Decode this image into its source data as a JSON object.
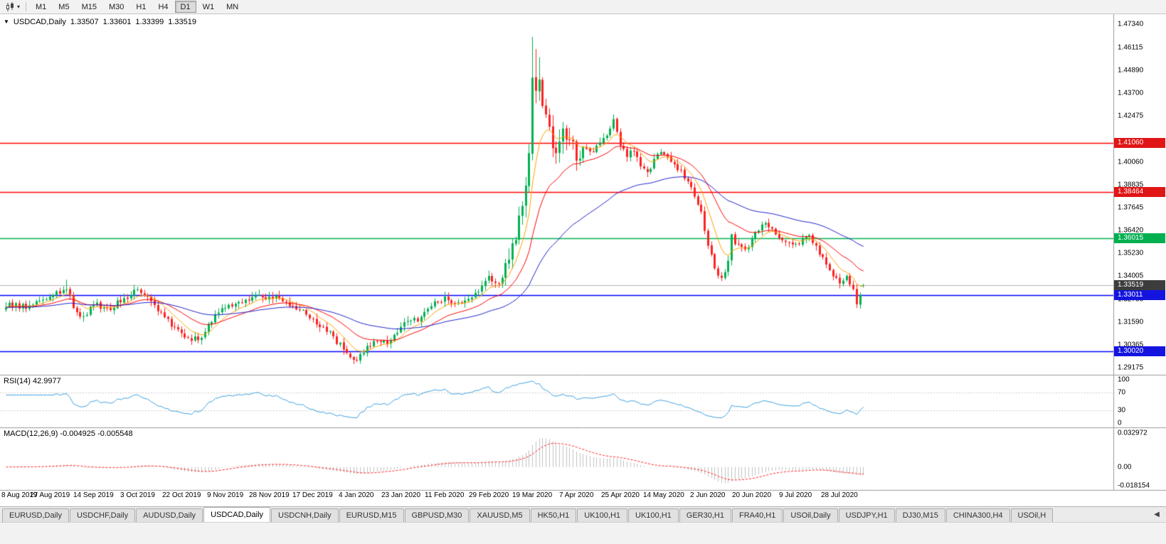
{
  "toolbar": {
    "dropdown_caret": "▾",
    "chart_icon": "candlestick-chart-icon",
    "timeframes": [
      {
        "label": "M1",
        "active": false
      },
      {
        "label": "M5",
        "active": false
      },
      {
        "label": "M15",
        "active": false
      },
      {
        "label": "M30",
        "active": false
      },
      {
        "label": "H1",
        "active": false
      },
      {
        "label": "H4",
        "active": false
      },
      {
        "label": "D1",
        "active": true
      },
      {
        "label": "W1",
        "active": false
      },
      {
        "label": "MN",
        "active": false
      }
    ]
  },
  "chart": {
    "collapse_icon": "▼",
    "symbol_title": "USDCAD,Daily",
    "ohlc": {
      "open": "1.33507",
      "high": "1.33601",
      "low": "1.33399",
      "close": "1.33519"
    }
  },
  "price_axis": {
    "ticks": [
      "1.47340",
      "1.46115",
      "1.44890",
      "1.43700",
      "1.42475",
      "1.40060",
      "1.38835",
      "1.37645",
      "1.36420",
      "1.35230",
      "1.34005",
      "1.32780",
      "1.31590",
      "1.30365",
      "1.29175"
    ],
    "badges": [
      {
        "label": "1.41060",
        "color": "#e01515",
        "current": false
      },
      {
        "label": "1.38464",
        "color": "#e01515",
        "current": false
      },
      {
        "label": "1.36015",
        "color": "#00b050",
        "current": false
      },
      {
        "label": "1.33519",
        "color": "#3c3c3c",
        "current": true
      },
      {
        "label": "1.33011",
        "color": "#1414e0",
        "current": false
      },
      {
        "label": "1.30020",
        "color": "#1414e0",
        "current": false
      }
    ]
  },
  "time_axis": {
    "labels": [
      "8 Aug 2019",
      "27 Aug 2019",
      "14 Sep 2019",
      "3 Oct 2019",
      "22 Oct 2019",
      "9 Nov 2019",
      "28 Nov 2019",
      "17 Dec 2019",
      "4 Jan 2020",
      "23 Jan 2020",
      "11 Feb 2020",
      "29 Feb 2020",
      "19 Mar 2020",
      "7 Apr 2020",
      "25 Apr 2020",
      "14 May 2020",
      "2 Jun 2020",
      "20 Jun 2020",
      "9 Jul 2020",
      "28 Jul 2020"
    ],
    "label_bars": [
      0,
      13,
      26,
      39,
      52,
      65,
      78,
      91,
      104,
      117,
      130,
      143,
      156,
      169,
      182,
      195,
      208,
      221,
      234,
      247
    ]
  },
  "rsi_panel": {
    "label": "RSI(14) 42.9977",
    "value": "42.9977",
    "scale": [
      "100",
      "70",
      "30",
      "0"
    ]
  },
  "macd_panel": {
    "label": "MACD(12,26,9) -0.004925 -0.005548",
    "main": "-0.004925",
    "signal": "-0.005548",
    "scale": [
      "0.032972",
      "0.00",
      "-0.018154"
    ]
  },
  "tabs": [
    {
      "label": "EURUSD,Daily",
      "active": false
    },
    {
      "label": "USDCHF,Daily",
      "active": false
    },
    {
      "label": "AUDUSD,Daily",
      "active": false
    },
    {
      "label": "USDCAD,Daily",
      "active": true
    },
    {
      "label": "USDCNH,Daily",
      "active": false
    },
    {
      "label": "EURUSD,M15",
      "active": false
    },
    {
      "label": "GBPUSD,M30",
      "active": false
    },
    {
      "label": "XAUUSD,M5",
      "active": false
    },
    {
      "label": "HK50,H1",
      "active": false
    },
    {
      "label": "UK100,H1",
      "active": false
    },
    {
      "label": "UK100,H1",
      "active": false
    },
    {
      "label": "GER30,H1",
      "active": false
    },
    {
      "label": "FRA40,H1",
      "active": false
    },
    {
      "label": "USOil,Daily",
      "active": false
    },
    {
      "label": "USDJPY,H1",
      "active": false
    },
    {
      "label": "DJ30,M15",
      "active": false
    },
    {
      "label": "CHINA300,H4",
      "active": false
    },
    {
      "label": "USOil,H",
      "active": false
    }
  ],
  "tab_scroll_icon": "◀",
  "chart_data": {
    "type": "candlestick",
    "symbol": "USDCAD",
    "period": "Daily",
    "bar_count": 255,
    "visible_price_range": [
      1.289,
      1.4765
    ],
    "current_price": 1.33519,
    "last_bar": {
      "open": 1.33507,
      "high": 1.33601,
      "low": 1.33399,
      "close": 1.33519
    },
    "horizontal_lines": [
      {
        "price": 1.4106,
        "color": "#ff0000"
      },
      {
        "price": 1.38464,
        "color": "#ff0000"
      },
      {
        "price": 1.36015,
        "color": "#00b050"
      },
      {
        "price": 1.33011,
        "color": "#0000ff"
      },
      {
        "price": 1.3002,
        "color": "#0000ff"
      }
    ],
    "up_color": "#00b050",
    "down_color": "#ff2020",
    "moving_averages": [
      {
        "type": "ema",
        "period": 8,
        "color": "#ffa000"
      },
      {
        "type": "ema",
        "period": 21,
        "color": "#ff0000"
      },
      {
        "type": "ema",
        "period": 55,
        "color": "#2020cc"
      }
    ],
    "rsi": {
      "period": 14,
      "current": 42.9977,
      "color": "#3f9fe0",
      "levels": [
        70,
        30
      ]
    },
    "macd": {
      "fast": 12,
      "slow": 26,
      "signal": 9,
      "current_main": -0.004925,
      "current_signal": -0.005548,
      "hist_color": "#c0c0c0",
      "signal_color": "#ff2020",
      "scale_range": [
        -0.018154,
        0.032972
      ]
    },
    "price_path_anchors": [
      [
        0,
        1.3235
      ],
      [
        3,
        1.3258
      ],
      [
        6,
        1.3228
      ],
      [
        9,
        1.3268
      ],
      [
        13,
        1.3292
      ],
      [
        16,
        1.3308
      ],
      [
        18,
        1.333
      ],
      [
        20,
        1.3232
      ],
      [
        23,
        1.3188
      ],
      [
        26,
        1.3246
      ],
      [
        30,
        1.3232
      ],
      [
        34,
        1.3262
      ],
      [
        37,
        1.33
      ],
      [
        39,
        1.333
      ],
      [
        42,
        1.3292
      ],
      [
        46,
        1.3212
      ],
      [
        50,
        1.3132
      ],
      [
        54,
        1.3075
      ],
      [
        57,
        1.3062
      ],
      [
        60,
        1.3148
      ],
      [
        63,
        1.3208
      ],
      [
        65,
        1.3232
      ],
      [
        68,
        1.3255
      ],
      [
        72,
        1.3272
      ],
      [
        75,
        1.3302
      ],
      [
        78,
        1.3292
      ],
      [
        81,
        1.3282
      ],
      [
        84,
        1.3242
      ],
      [
        88,
        1.3222
      ],
      [
        91,
        1.3172
      ],
      [
        94,
        1.3132
      ],
      [
        97,
        1.3082
      ],
      [
        100,
        1.3012
      ],
      [
        103,
        1.2958
      ],
      [
        105,
        1.2988
      ],
      [
        107,
        1.3032
      ],
      [
        110,
        1.3056
      ],
      [
        113,
        1.3042
      ],
      [
        117,
        1.3132
      ],
      [
        120,
        1.3166
      ],
      [
        123,
        1.3186
      ],
      [
        126,
        1.3242
      ],
      [
        130,
        1.3292
      ],
      [
        133,
        1.3258
      ],
      [
        136,
        1.3272
      ],
      [
        139,
        1.3312
      ],
      [
        143,
        1.3402
      ],
      [
        145,
        1.3365
      ],
      [
        147,
        1.3392
      ],
      [
        149,
        1.3488
      ],
      [
        151,
        1.3592
      ],
      [
        153,
        1.3772
      ],
      [
        155,
        1.4052
      ],
      [
        156,
        1.4452
      ],
      [
        157,
        1.4382
      ],
      [
        158,
        1.4442
      ],
      [
        159,
        1.4302
      ],
      [
        161,
        1.4192
      ],
      [
        163,
        1.4052
      ],
      [
        165,
        1.4182
      ],
      [
        167,
        1.4122
      ],
      [
        169,
        1.4012
      ],
      [
        171,
        1.4082
      ],
      [
        173,
        1.4062
      ],
      [
        175,
        1.4092
      ],
      [
        177,
        1.4132
      ],
      [
        179,
        1.4182
      ],
      [
        180,
        1.4232
      ],
      [
        182,
        1.4092
      ],
      [
        184,
        1.4032
      ],
      [
        186,
        1.4062
      ],
      [
        188,
        1.3982
      ],
      [
        190,
        1.3952
      ],
      [
        192,
        1.4022
      ],
      [
        194,
        1.4058
      ],
      [
        196,
        1.4032
      ],
      [
        198,
        1.3992
      ],
      [
        200,
        1.3962
      ],
      [
        202,
        1.3902
      ],
      [
        204,
        1.3822
      ],
      [
        206,
        1.3742
      ],
      [
        208,
        1.3562
      ],
      [
        210,
        1.3442
      ],
      [
        212,
        1.3392
      ],
      [
        214,
        1.3482
      ],
      [
        215,
        1.3622
      ],
      [
        217,
        1.3572
      ],
      [
        219,
        1.3542
      ],
      [
        221,
        1.3602
      ],
      [
        223,
        1.3642
      ],
      [
        225,
        1.3682
      ],
      [
        227,
        1.3652
      ],
      [
        229,
        1.3602
      ],
      [
        231,
        1.3582
      ],
      [
        234,
        1.3572
      ],
      [
        236,
        1.3602
      ],
      [
        238,
        1.3618
      ],
      [
        240,
        1.3562
      ],
      [
        242,
        1.3502
      ],
      [
        244,
        1.3432
      ],
      [
        246,
        1.3392
      ],
      [
        247,
        1.3362
      ],
      [
        249,
        1.3402
      ],
      [
        251,
        1.3332
      ],
      [
        252,
        1.3252
      ],
      [
        253,
        1.3302
      ],
      [
        254,
        1.33519
      ]
    ],
    "pinned_extremes": [
      {
        "bar": 18,
        "high": 1.3382
      },
      {
        "bar": 103,
        "low": 1.2952
      },
      {
        "bar": 156,
        "high": 1.4668
      },
      {
        "bar": 157,
        "high": 1.4603
      },
      {
        "bar": 158,
        "high": 1.456
      },
      {
        "bar": 252,
        "low": 1.3232
      }
    ]
  }
}
